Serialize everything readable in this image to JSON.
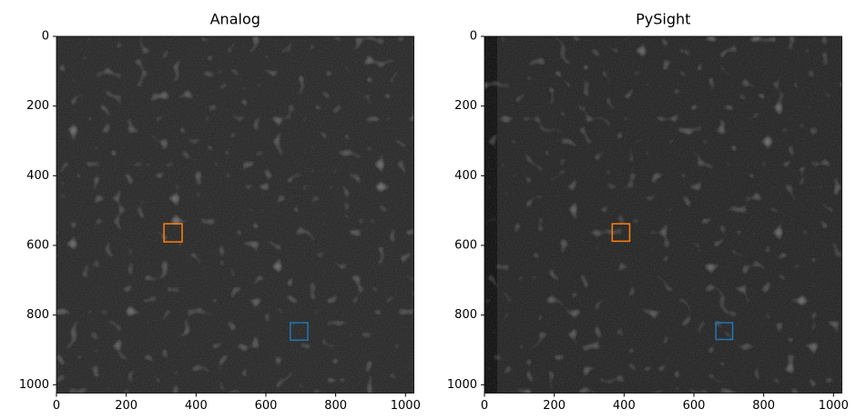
{
  "chart_data": [
    {
      "type": "image",
      "title": "Analog",
      "xlim": [
        0,
        1024
      ],
      "ylim": [
        1024,
        0
      ],
      "xticks": [
        0,
        200,
        400,
        600,
        800,
        1000
      ],
      "yticks": [
        0,
        200,
        400,
        600,
        800,
        1000
      ],
      "rois": [
        {
          "color": "#ff7f0e",
          "x": 308,
          "y": 538,
          "size": 52
        },
        {
          "color": "#1f77b4",
          "x": 670,
          "y": 822,
          "size": 50
        }
      ]
    },
    {
      "type": "image",
      "title": "PySight",
      "xlim": [
        0,
        1024
      ],
      "ylim": [
        1024,
        0
      ],
      "xticks": [
        0,
        200,
        400,
        600,
        800,
        1000
      ],
      "yticks": [
        0,
        200,
        400,
        600,
        800,
        1000
      ],
      "rois": [
        {
          "color": "#ff7f0e",
          "x": 366,
          "y": 538,
          "size": 50
        },
        {
          "color": "#1f77b4",
          "x": 663,
          "y": 822,
          "size": 48
        }
      ]
    }
  ]
}
